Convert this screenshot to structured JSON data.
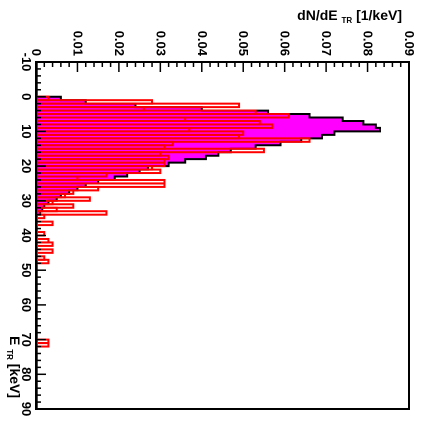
{
  "chart_data": {
    "type": "histogram",
    "orientation": "rotated-90",
    "y_axis": {
      "label_main": "dN/dE",
      "label_sub": "TR",
      "label_unit": " [1/keV]",
      "range": [
        0,
        0.09
      ],
      "ticks": [
        "0",
        "0.01",
        "0.02",
        "0.03",
        "0.04",
        "0.05",
        "0.06",
        "0.07",
        "0.08",
        "0.09"
      ]
    },
    "x_axis": {
      "label_main": "E",
      "label_sub": "TR",
      "label_unit": " [keV]",
      "range": [
        -10,
        90
      ],
      "ticks": [
        "-10",
        "0",
        "10",
        "20",
        "30",
        "40",
        "50",
        "60",
        "70",
        "80",
        "90"
      ]
    },
    "series": [
      {
        "style": "filled",
        "fill": "#ff00ff",
        "stroke": "#000000",
        "bin_width": 1,
        "x_start": 0,
        "values": [
          0.006,
          0.012,
          0.024,
          0.04,
          0.056,
          0.066,
          0.074,
          0.079,
          0.082,
          0.083,
          0.072,
          0.069,
          0.064,
          0.059,
          0.053,
          0.047,
          0.044,
          0.041,
          0.036,
          0.032,
          0.027,
          0.025,
          0.022,
          0.019,
          0.015,
          0.012,
          0.01,
          0.008,
          0.006,
          0.005,
          0.003,
          0.002,
          0.0015,
          0.001
        ]
      },
      {
        "style": "outline",
        "fill": "none",
        "stroke": "#ff0000",
        "bin_width": 1,
        "x_start": 0,
        "values": [
          0.003,
          0.028,
          0.049,
          0.026,
          0.053,
          0.061,
          0.036,
          0.054,
          0.057,
          0.037,
          0.05,
          0.049,
          0.066,
          0.033,
          0.031,
          0.055,
          0.03,
          0.032,
          0.031,
          0.031,
          0.028,
          0.03,
          0.017,
          0.01,
          0.031,
          0.031,
          0.015,
          0.009,
          0.007,
          0.013,
          0.004,
          0.009,
          0.005,
          0.017,
          0.002,
          0.0,
          0.004,
          0.0,
          0.0,
          0.002,
          0.0,
          0.003,
          0.004,
          0.0,
          0.004,
          0.0,
          0.002,
          0.003,
          0.0,
          0.0,
          0.0,
          0.0,
          0.0,
          0.0,
          0.0,
          0.0,
          0.0,
          0.0,
          0.0,
          0.0,
          0.0,
          0.0,
          0.0,
          0.0,
          0.0,
          0.0,
          0.0,
          0.0,
          0.0,
          0.0,
          0.003,
          0.003
        ]
      }
    ]
  }
}
